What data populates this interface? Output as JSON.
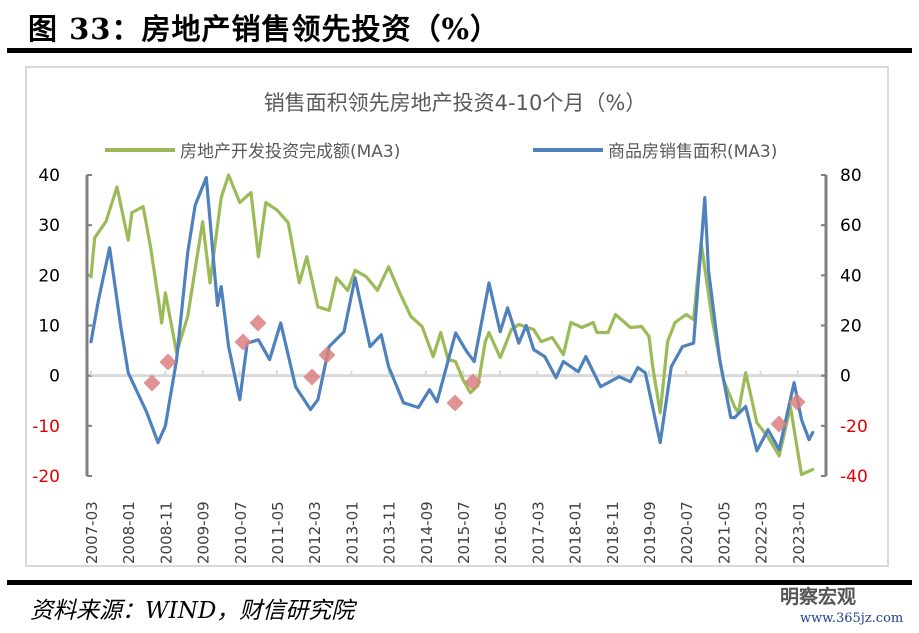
{
  "figure_title": "图 33：房地产销售领先投资（%）",
  "source": "资料来源：WIND，财信研究院",
  "watermark": {
    "name": "明察宏观",
    "url": "www.365jz.com"
  },
  "colors": {
    "green": "#9bbb59",
    "blue": "#4f81bd",
    "negative_tick": "#e00000",
    "axis": "#7f7f7f",
    "zero_line": "#d9d9d9",
    "marker": "#d98080"
  },
  "chart_data": {
    "type": "line",
    "title": "销售面积领先房地产投资4-10个月（%）",
    "x_start": "2007-03",
    "x_unit": "month index from 2007-03",
    "x_ticks": [
      "2007-03",
      "2008-01",
      "2008-11",
      "2009-09",
      "2010-07",
      "2011-05",
      "2012-03",
      "2013-01",
      "2013-11",
      "2014-09",
      "2015-07",
      "2016-05",
      "2017-03",
      "2018-01",
      "2018-11",
      "2019-09",
      "2020-07",
      "2021-05",
      "2022-03",
      "2023-01"
    ],
    "y_left": {
      "min": -20,
      "max": 40,
      "ticks": [
        "40",
        "30",
        "20",
        "10",
        "0",
        "-10",
        "-20"
      ]
    },
    "y_right": {
      "min": -40,
      "max": 80,
      "ticks": [
        "80",
        "60",
        "40",
        "20",
        "0",
        "-20",
        "-40"
      ]
    },
    "legend_position": "top",
    "series": [
      {
        "name": "房地产开发投资完成额(MA3)",
        "axis": "left",
        "color": "#9bbb59",
        "points": [
          [
            0,
            19.7
          ],
          [
            1,
            27.5
          ],
          [
            4,
            30.7
          ],
          [
            7,
            37.6
          ],
          [
            10,
            27
          ],
          [
            11,
            32.5
          ],
          [
            14,
            33.7
          ],
          [
            16,
            25.7
          ],
          [
            18,
            15.8
          ],
          [
            19,
            10.5
          ],
          [
            20,
            16.5
          ],
          [
            23,
            4.6
          ],
          [
            26,
            11.8
          ],
          [
            30,
            30.7
          ],
          [
            32,
            18.5
          ],
          [
            35,
            35.5
          ],
          [
            37,
            40
          ],
          [
            40,
            34.5
          ],
          [
            43,
            36.5
          ],
          [
            45,
            23.7
          ],
          [
            47,
            34.5
          ],
          [
            50,
            33
          ],
          [
            53,
            30.5
          ],
          [
            56,
            18.5
          ],
          [
            58,
            23.7
          ],
          [
            61,
            13.7
          ],
          [
            64,
            13
          ],
          [
            66,
            19.5
          ],
          [
            69,
            17
          ],
          [
            71,
            21
          ],
          [
            74,
            19.7
          ],
          [
            77,
            17
          ],
          [
            80,
            21.7
          ],
          [
            83,
            16.5
          ],
          [
            86,
            11.8
          ],
          [
            89,
            9.8
          ],
          [
            92,
            3.8
          ],
          [
            94,
            8.6
          ],
          [
            96,
            3.2
          ],
          [
            98,
            2.8
          ],
          [
            100,
            -0.8
          ],
          [
            102,
            -3.4
          ],
          [
            104,
            -2
          ],
          [
            106,
            6.8
          ],
          [
            107,
            8.6
          ],
          [
            110,
            3.6
          ],
          [
            113,
            9.2
          ],
          [
            115,
            10.2
          ],
          [
            119,
            9.2
          ],
          [
            121,
            6.8
          ],
          [
            124,
            7.6
          ],
          [
            127,
            4.2
          ],
          [
            129,
            10.6
          ],
          [
            132,
            9.6
          ],
          [
            135,
            10.6
          ],
          [
            136,
            8.6
          ],
          [
            139,
            8.6
          ],
          [
            141,
            12.2
          ],
          [
            145,
            9.6
          ],
          [
            148,
            9.8
          ],
          [
            150,
            7.8
          ],
          [
            151,
            1.8
          ],
          [
            153,
            -7.4
          ],
          [
            155,
            6.8
          ],
          [
            157,
            10.6
          ],
          [
            160,
            12.2
          ],
          [
            162,
            11.2
          ],
          [
            164,
            26.5
          ],
          [
            167,
            11.2
          ],
          [
            170,
            -0.8
          ],
          [
            173,
            -6.2
          ],
          [
            174,
            -7.4
          ],
          [
            176,
            0.6
          ],
          [
            179,
            -9.4
          ],
          [
            182,
            -12.2
          ],
          [
            185,
            -16
          ],
          [
            188,
            -6.2
          ],
          [
            191,
            -19.7
          ],
          [
            194,
            -18.7
          ]
        ]
      },
      {
        "name": "商品房销售面积(MA3)",
        "axis": "right",
        "color": "#4f81bd",
        "points": [
          [
            0,
            13.5
          ],
          [
            2,
            30
          ],
          [
            5,
            51
          ],
          [
            8,
            19.5
          ],
          [
            10,
            1.2
          ],
          [
            15,
            -14.7
          ],
          [
            18,
            -26.7
          ],
          [
            20,
            -20
          ],
          [
            23,
            6.4
          ],
          [
            26,
            49
          ],
          [
            28,
            68
          ],
          [
            31,
            79
          ],
          [
            34,
            28
          ],
          [
            35,
            35.5
          ],
          [
            37,
            11.6
          ],
          [
            40,
            -9.6
          ],
          [
            42,
            13
          ],
          [
            45,
            14.3
          ],
          [
            48,
            6.4
          ],
          [
            51,
            21
          ],
          [
            55,
            -4.4
          ],
          [
            59,
            -13.5
          ],
          [
            61,
            -9.6
          ],
          [
            64,
            11.6
          ],
          [
            68,
            17.5
          ],
          [
            71,
            39
          ],
          [
            75,
            11.6
          ],
          [
            78,
            16.3
          ],
          [
            80,
            3.6
          ],
          [
            84,
            -10.8
          ],
          [
            88,
            -12.7
          ],
          [
            91,
            -5.6
          ],
          [
            93,
            -10.4
          ],
          [
            98,
            17
          ],
          [
            101,
            9.6
          ],
          [
            103,
            5.6
          ],
          [
            107,
            37
          ],
          [
            110,
            17.5
          ],
          [
            112,
            27
          ],
          [
            115,
            13
          ],
          [
            117,
            20
          ],
          [
            119,
            10.4
          ],
          [
            122,
            7.6
          ],
          [
            125,
            -0.8
          ],
          [
            127,
            5.6
          ],
          [
            131,
            1.6
          ],
          [
            133,
            7.6
          ],
          [
            137,
            -4.4
          ],
          [
            142,
            -0.4
          ],
          [
            145,
            -2.4
          ],
          [
            147,
            3.2
          ],
          [
            149,
            1.2
          ],
          [
            153,
            -26.7
          ],
          [
            156,
            3.6
          ],
          [
            159,
            11.6
          ],
          [
            162,
            13
          ],
          [
            165,
            71
          ],
          [
            166,
            42
          ],
          [
            169,
            6.4
          ],
          [
            172,
            -16.7
          ],
          [
            173,
            -16.7
          ],
          [
            176,
            -12.3
          ],
          [
            179,
            -30
          ],
          [
            182,
            -21.5
          ],
          [
            185,
            -29.5
          ],
          [
            189,
            -2.8
          ],
          [
            191,
            -17.5
          ],
          [
            193,
            -25.5
          ],
          [
            194,
            -22.7
          ]
        ]
      }
    ]
  }
}
